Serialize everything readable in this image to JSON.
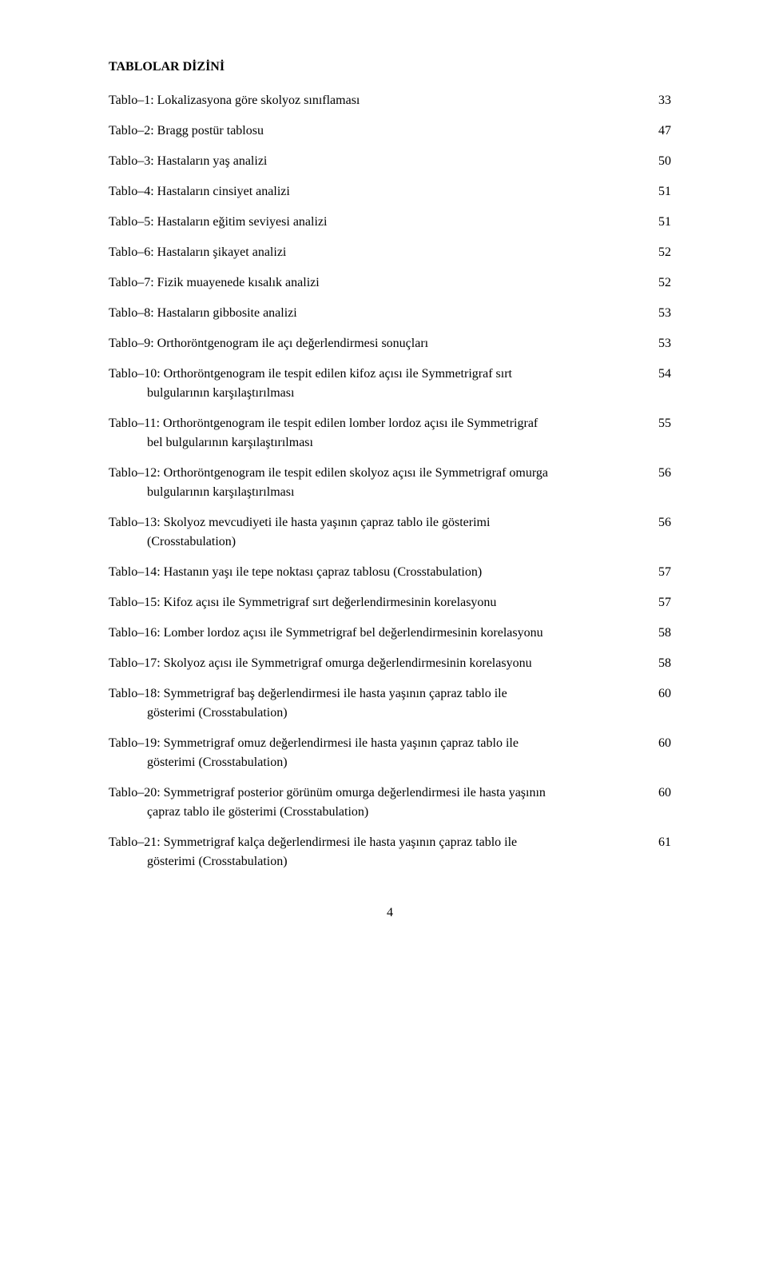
{
  "heading": "TABLOLAR DİZİNİ",
  "entries": [
    {
      "text": "Tablo–1:  Lokalizasyona göre skolyoz sınıflaması",
      "cont": "",
      "page": "33"
    },
    {
      "text": "Tablo–2:  Bragg postür tablosu",
      "cont": "",
      "page": "47"
    },
    {
      "text": "Tablo–3:  Hastaların yaş analizi",
      "cont": "",
      "page": "50"
    },
    {
      "text": "Tablo–4:  Hastaların cinsiyet analizi",
      "cont": "",
      "page": "51"
    },
    {
      "text": "Tablo–5:  Hastaların eğitim seviyesi analizi",
      "cont": "",
      "page": "51"
    },
    {
      "text": "Tablo–6:  Hastaların şikayet analizi",
      "cont": "",
      "page": "52"
    },
    {
      "text": "Tablo–7:  Fizik muayenede kısalık analizi",
      "cont": "",
      "page": "52"
    },
    {
      "text": "Tablo–8:  Hastaların gibbosite analizi",
      "cont": "",
      "page": "53"
    },
    {
      "text": "Tablo–9:  Orthoröntgenogram ile açı değerlendirmesi sonuçları",
      "cont": "",
      "page": "53"
    },
    {
      "text": "Tablo–10: Orthoröntgenogram ile tespit edilen kifoz açısı ile Symmetrigraf sırt",
      "cont": "bulgularının karşılaştırılması",
      "page": "54"
    },
    {
      "text": "Tablo–11: Orthoröntgenogram ile tespit edilen lomber lordoz açısı ile Symmetrigraf",
      "cont": "bel bulgularının karşılaştırılması",
      "page": "55"
    },
    {
      "text": "Tablo–12: Orthoröntgenogram ile tespit edilen skolyoz açısı ile Symmetrigraf omurga",
      "cont": "bulgularının karşılaştırılması",
      "page": "56"
    },
    {
      "text": "Tablo–13: Skolyoz mevcudiyeti ile hasta yaşının çapraz tablo ile gösterimi",
      "cont": "(Crosstabulation)",
      "page": "56"
    },
    {
      "text": "Tablo–14: Hastanın yaşı ile tepe noktası çapraz tablosu (Crosstabulation)",
      "cont": "",
      "page": "57"
    },
    {
      "text": "Tablo–15: Kifoz açısı ile Symmetrigraf sırt değerlendirmesinin korelasyonu",
      "cont": "",
      "page": "57"
    },
    {
      "text": "Tablo–16: Lomber lordoz açısı ile Symmetrigraf bel değerlendirmesinin korelasyonu",
      "cont": "",
      "page": "58"
    },
    {
      "text": "Tablo–17: Skolyoz açısı ile Symmetrigraf omurga değerlendirmesinin korelasyonu",
      "cont": "",
      "page": "58"
    },
    {
      "text": "Tablo–18: Symmetrigraf baş değerlendirmesi ile hasta yaşının çapraz tablo ile",
      "cont": "gösterimi (Crosstabulation)",
      "page": "60"
    },
    {
      "text": "Tablo–19: Symmetrigraf omuz değerlendirmesi ile hasta yaşının çapraz tablo ile",
      "cont": "gösterimi (Crosstabulation)",
      "page": "60"
    },
    {
      "text": "Tablo–20: Symmetrigraf posterior görünüm omurga değerlendirmesi ile hasta yaşının",
      "cont": "çapraz tablo ile gösterimi (Crosstabulation)",
      "page": "60"
    },
    {
      "text": "Tablo–21: Symmetrigraf kalça değerlendirmesi ile hasta yaşının çapraz tablo ile",
      "cont": "gösterimi (Crosstabulation)",
      "page": "61"
    }
  ],
  "pageNumber": "4"
}
